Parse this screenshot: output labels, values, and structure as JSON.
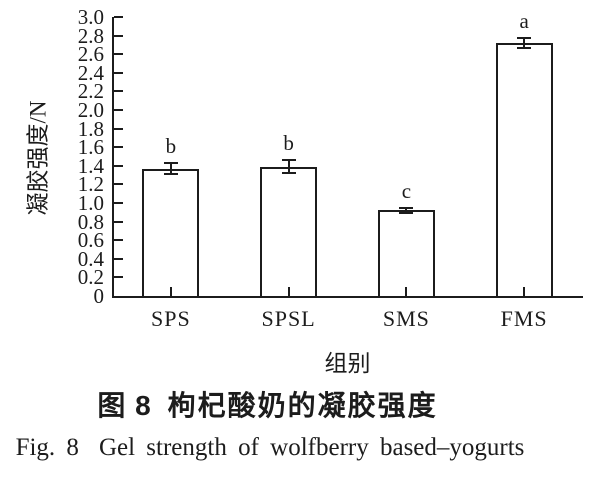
{
  "figure": {
    "caption_zh_label": "图 8",
    "caption_zh_text": "枸杞酸奶的凝胶强度",
    "caption_en_label": "Fig. 8",
    "caption_en_text": "Gel strength of wolfberry based–yogurts"
  },
  "chart_data": {
    "type": "bar",
    "categories": [
      "SPS",
      "SPSL",
      "SMS",
      "FMS"
    ],
    "values": [
      1.37,
      1.39,
      0.92,
      2.72
    ],
    "error_bars": [
      0.07,
      0.08,
      0.04,
      0.06
    ],
    "sig_letters": [
      "b",
      "b",
      "c",
      "a"
    ],
    "xlabel": "组别",
    "ylabel": "凝胶强度/N",
    "ylim": [
      0,
      3.0
    ],
    "ytick_step": 0.2,
    "ytick_labels": [
      "0",
      "0.2",
      "0.4",
      "0.6",
      "0.8",
      "1.0",
      "1.2",
      "1.4",
      "1.6",
      "1.8",
      "2.0",
      "2.2",
      "2.4",
      "2.6",
      "2.8",
      "3.0"
    ],
    "bar_fill": "#ffffff",
    "line_color": "#1c1c1c",
    "grid": false,
    "legend": "none"
  }
}
